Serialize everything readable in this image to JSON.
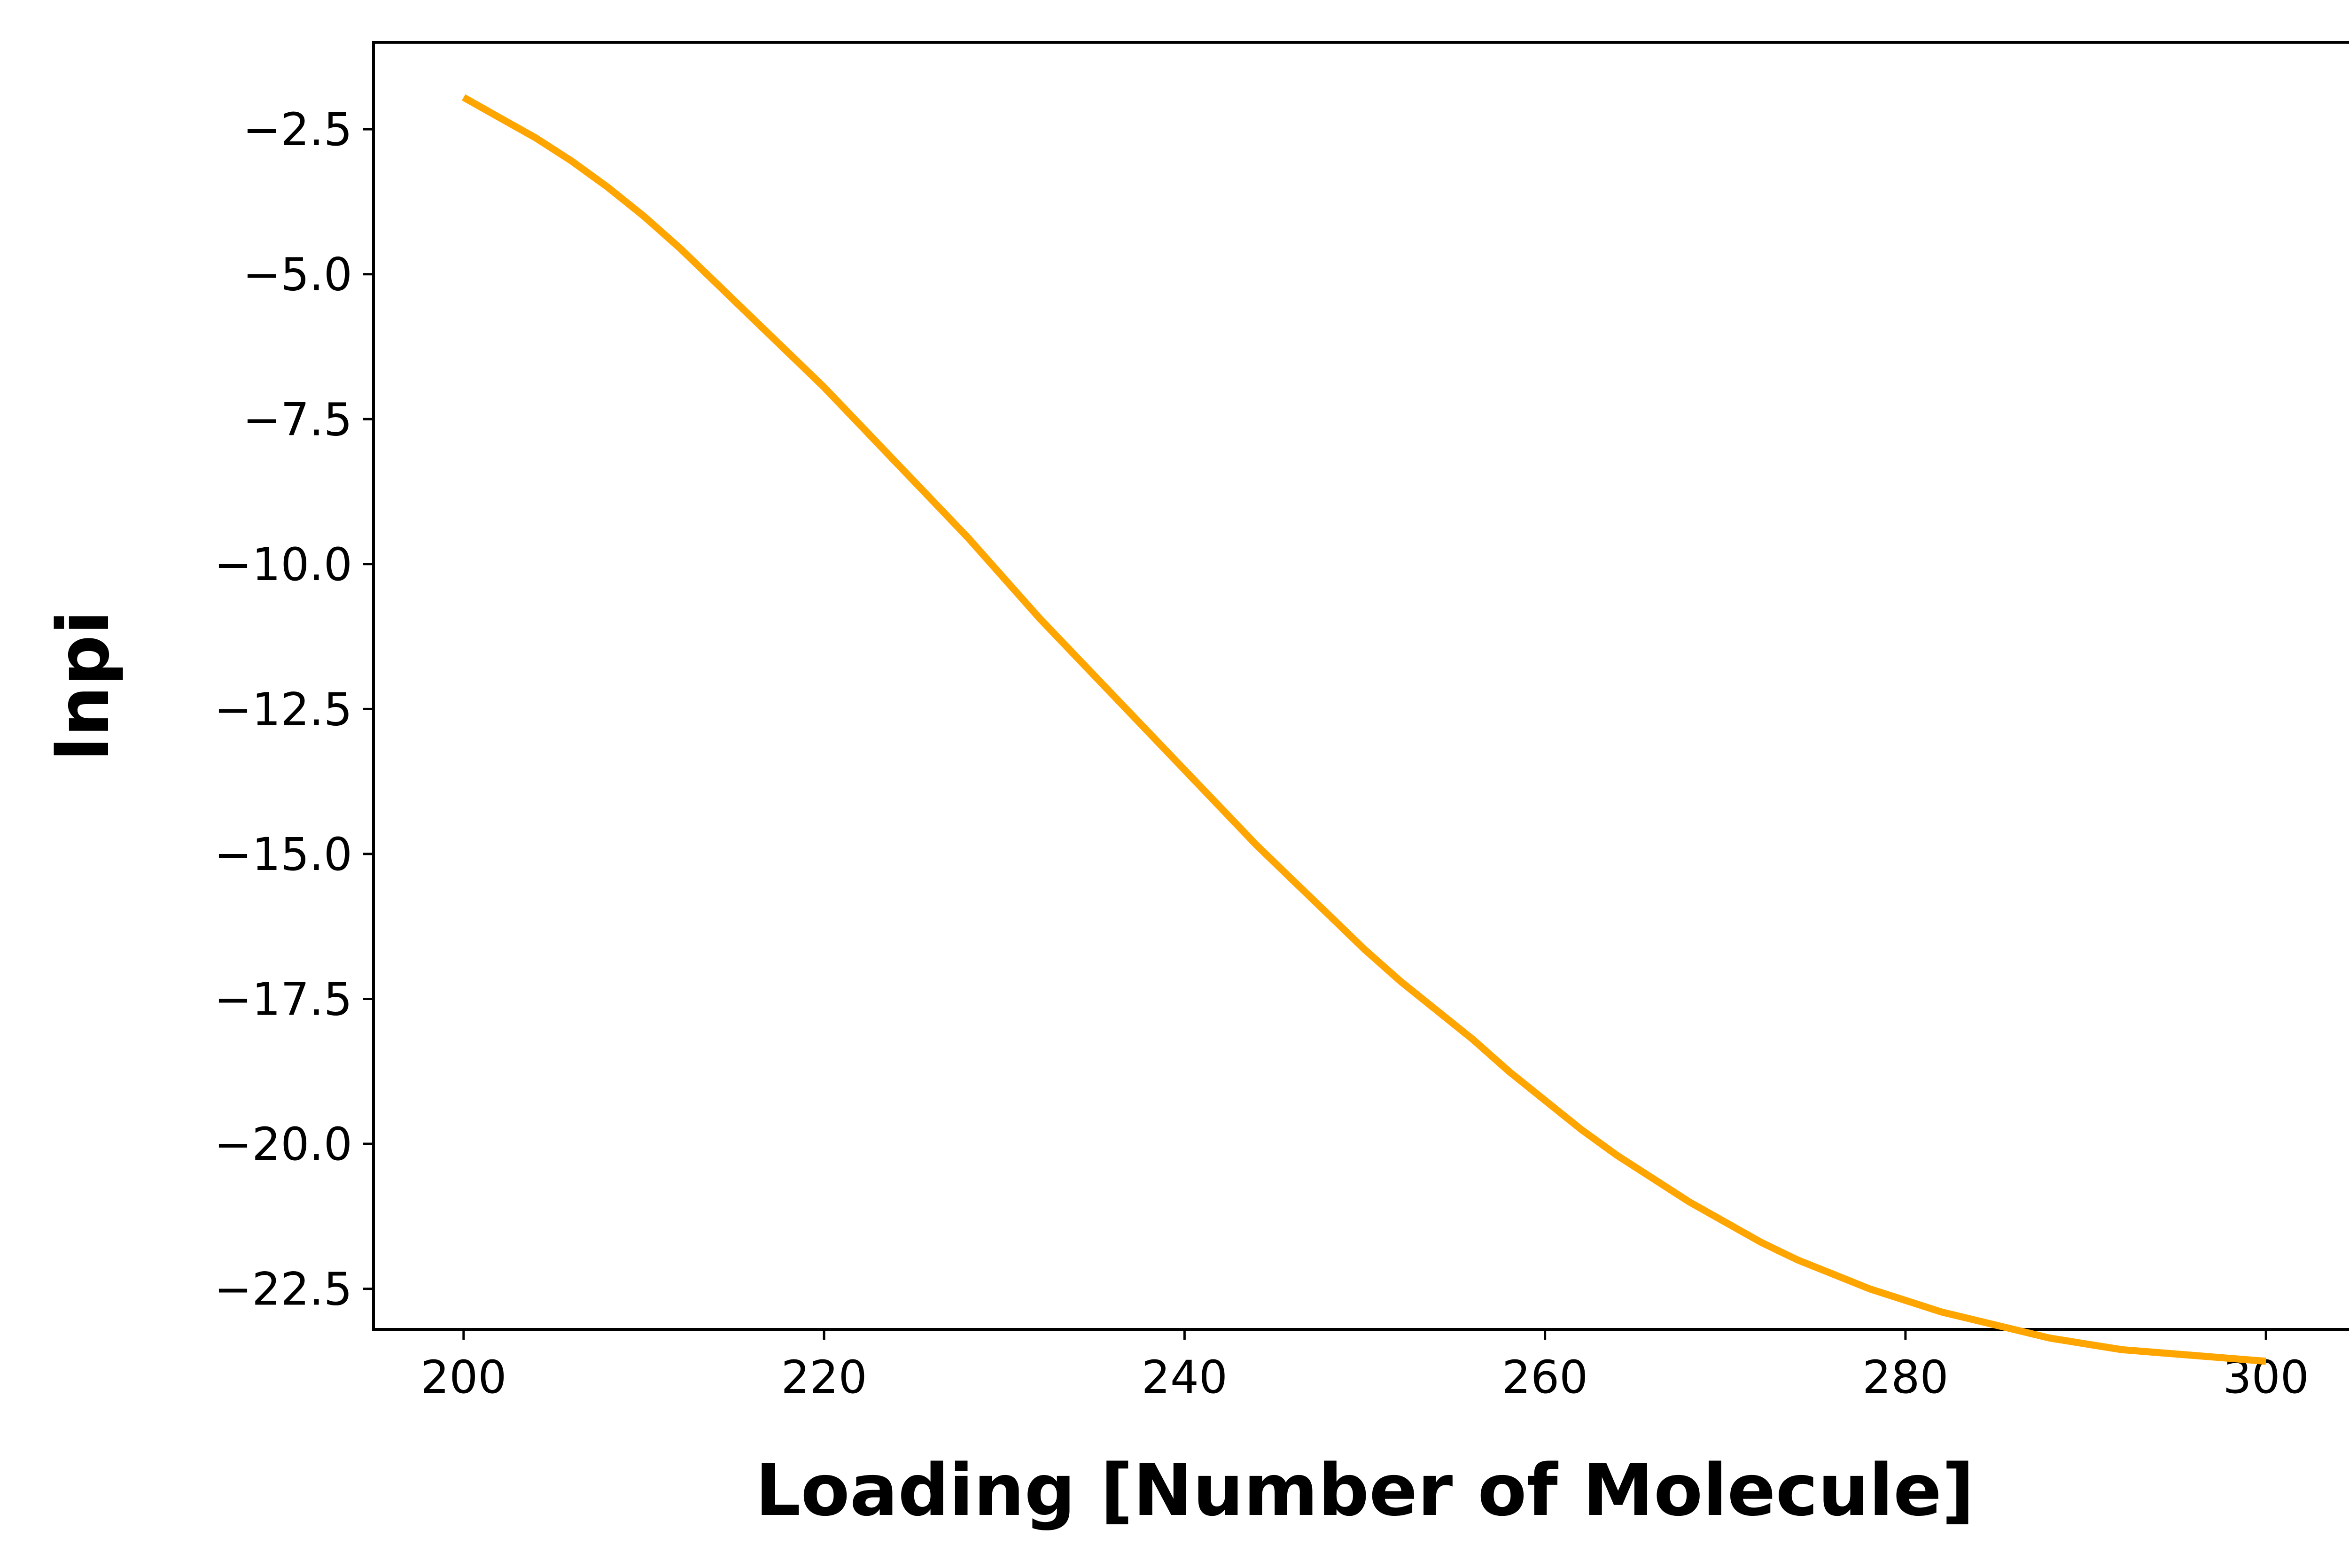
{
  "chart_data": {
    "type": "line",
    "title": "",
    "xlabel": "Loading [Number of Molecule]",
    "ylabel": "lnpi",
    "xlim": [
      195,
      305
    ],
    "ylim": [
      -23.2,
      -1.0
    ],
    "grid": false,
    "legend": "none",
    "x_ticks": [
      "200",
      "220",
      "240",
      "260",
      "280",
      "300"
    ],
    "y_ticks": [
      "−2.5",
      "−5.0",
      "−7.5",
      "−10.0",
      "−12.5",
      "−15.0",
      "−17.5",
      "−20.0",
      "−22.5"
    ],
    "series": [
      {
        "color": "#ffa500",
        "x": [
          200,
          202,
          204,
          206,
          208,
          210,
          212,
          214,
          216,
          218,
          220,
          222,
          224,
          226,
          228,
          230,
          232,
          234,
          236,
          238,
          240,
          242,
          244,
          246,
          248,
          250,
          252,
          254,
          256,
          258,
          260,
          262,
          264,
          266,
          268,
          270,
          272,
          274,
          276,
          278,
          280,
          282,
          284,
          286,
          288,
          290,
          292,
          294,
          296,
          298,
          300
        ],
        "y": [
          -1.95,
          -2.3,
          -2.65,
          -3.05,
          -3.5,
          -4.0,
          -4.55,
          -5.15,
          -5.75,
          -6.35,
          -6.95,
          -7.6,
          -8.25,
          -8.9,
          -9.55,
          -10.25,
          -10.95,
          -11.6,
          -12.25,
          -12.9,
          -13.55,
          -14.2,
          -14.85,
          -15.45,
          -16.05,
          -16.65,
          -17.2,
          -17.7,
          -18.2,
          -18.75,
          -19.25,
          -19.75,
          -20.2,
          -20.6,
          -21.0,
          -21.35,
          -21.7,
          -22.0,
          -22.25,
          -22.5,
          -22.7,
          -22.9,
          -23.05,
          -23.2,
          -23.35,
          -23.45,
          -23.55,
          -23.6,
          -23.65,
          -23.7,
          -23.75
        ]
      }
    ]
  }
}
